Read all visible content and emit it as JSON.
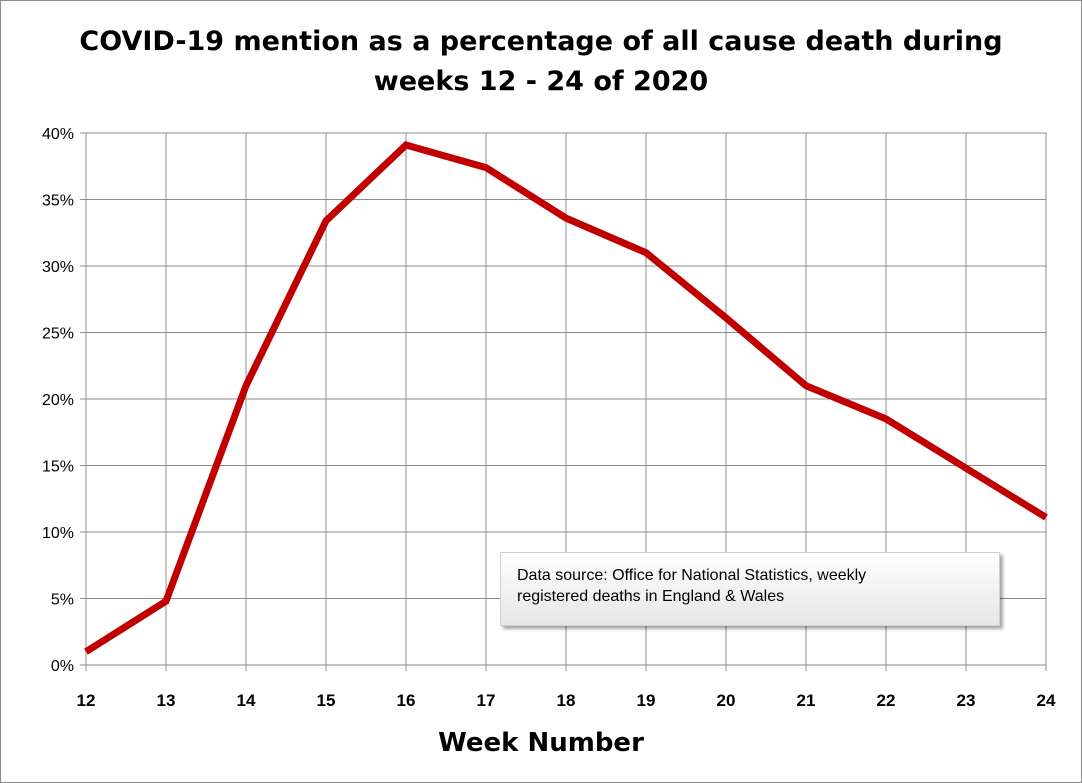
{
  "chart_data": {
    "type": "line",
    "title": [
      "COVID-19 mention as a percentage of all cause death during",
      "weeks 12 - 24 of 2020"
    ],
    "xlabel": "Week Number",
    "ylabel": "",
    "x": [
      12,
      13,
      14,
      15,
      16,
      17,
      18,
      19,
      20,
      21,
      22,
      23,
      24
    ],
    "series": [
      {
        "name": "COVID-19 mention %",
        "values": [
          1.0,
          4.8,
          21.0,
          33.4,
          39.1,
          37.4,
          33.6,
          31.0,
          26.1,
          21.0,
          18.5,
          14.8,
          11.1
        ]
      }
    ],
    "ylim": [
      0,
      40
    ],
    "yticks": [
      0,
      5,
      10,
      15,
      20,
      25,
      30,
      35,
      40
    ],
    "ytick_labels": [
      "0%",
      "5%",
      "10%",
      "15%",
      "20%",
      "25%",
      "30%",
      "35%",
      "40%"
    ],
    "xtick_labels": [
      "12",
      "13",
      "14",
      "15",
      "16",
      "17",
      "18",
      "19",
      "20",
      "21",
      "22",
      "23",
      "24"
    ],
    "grid": true,
    "line_color": "#c00000",
    "annotation": [
      "Data source: Office for National Statistics, weekly",
      "registered deaths in England & Wales"
    ]
  }
}
